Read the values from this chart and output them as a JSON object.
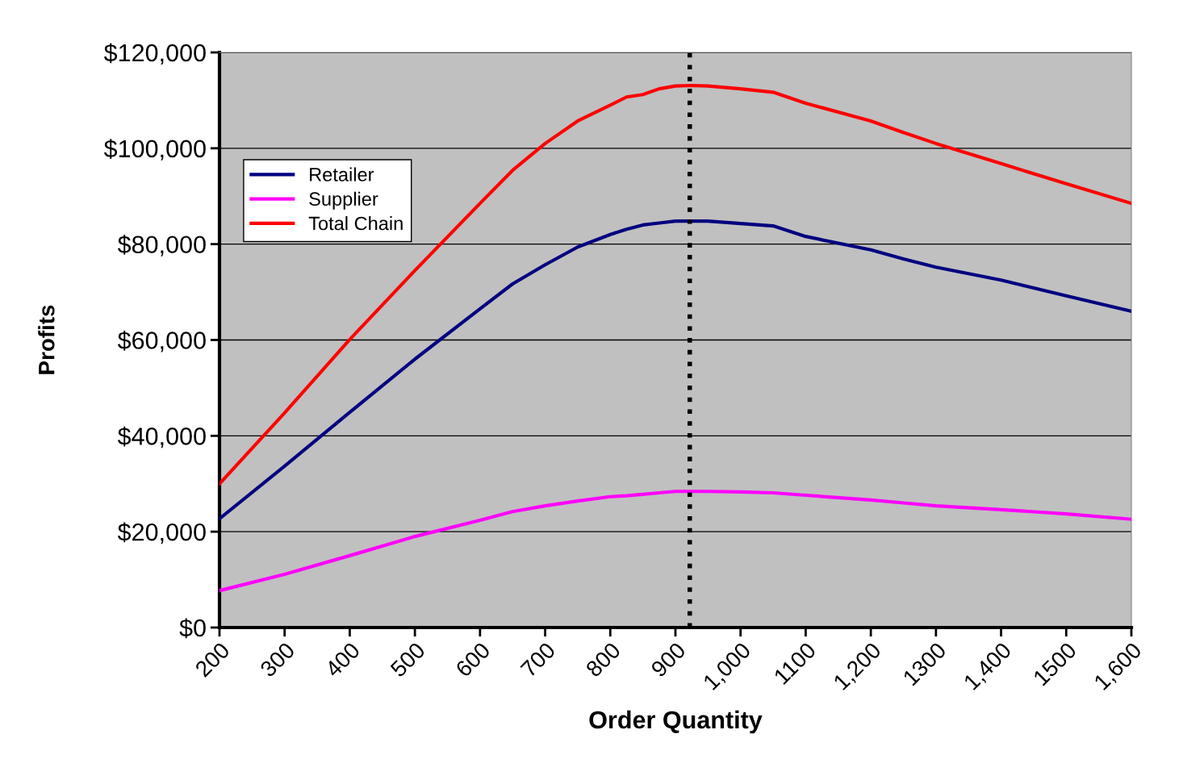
{
  "chart_data": {
    "type": "line",
    "xlabel": "Order Quantity",
    "ylabel": "Profits",
    "x": [
      200,
      300,
      400,
      500,
      600,
      650,
      700,
      750,
      800,
      825,
      850,
      875,
      900,
      925,
      950,
      1000,
      1050,
      1100,
      1200,
      1250,
      1300,
      1400,
      1500,
      1600
    ],
    "series": [
      {
        "name": "Retailer",
        "color": "#000080",
        "values": [
          22700,
          33700,
          44900,
          56000,
          66500,
          71700,
          75700,
          79400,
          82000,
          83100,
          84000,
          84400,
          84800,
          84800,
          84800,
          84300,
          83800,
          81600,
          78800,
          76900,
          75200,
          72500,
          69200,
          66000
        ]
      },
      {
        "name": "Supplier",
        "color": "#ff00ff",
        "values": [
          7700,
          11100,
          15000,
          19000,
          22400,
          24200,
          25400,
          26400,
          27300,
          27500,
          27800,
          28100,
          28400,
          28400,
          28400,
          28300,
          28100,
          27600,
          26600,
          26000,
          25400,
          24600,
          23700,
          22600
        ]
      },
      {
        "name": "Total Chain",
        "color": "#ff0000",
        "values": [
          30000,
          44800,
          60100,
          74500,
          88500,
          95400,
          101000,
          105700,
          109000,
          110700,
          111200,
          112400,
          113000,
          113100,
          113000,
          112400,
          111700,
          109400,
          105700,
          103300,
          101000,
          96800,
          92600,
          88500
        ]
      }
    ],
    "xlim": [
      200,
      1600
    ],
    "xticks": [
      200,
      300,
      400,
      500,
      600,
      700,
      800,
      900,
      {
        "value": 1000,
        "label": "1,000"
      },
      1100,
      {
        "value": 1200,
        "label": "1,200"
      },
      1300,
      {
        "value": 1400,
        "label": "1,400"
      },
      1500,
      {
        "value": 1600,
        "label": "1,600"
      }
    ],
    "ylim": [
      0,
      120000
    ],
    "yticks": [
      {
        "value": 0,
        "label": "$0"
      },
      {
        "value": 20000,
        "label": "$20,000"
      },
      {
        "value": 40000,
        "label": "$40,000"
      },
      {
        "value": 60000,
        "label": "$60,000"
      },
      {
        "value": 80000,
        "label": "$80,000"
      },
      {
        "value": 100000,
        "label": "$100,000"
      },
      {
        "value": 120000,
        "label": "$120,000"
      }
    ],
    "ref_lines": [
      {
        "axis": "x",
        "value": 922,
        "color": "#000000",
        "line_style": "dotted"
      }
    ],
    "grid": "y",
    "legend": "top left",
    "marker": "none",
    "line_style": "solid"
  }
}
